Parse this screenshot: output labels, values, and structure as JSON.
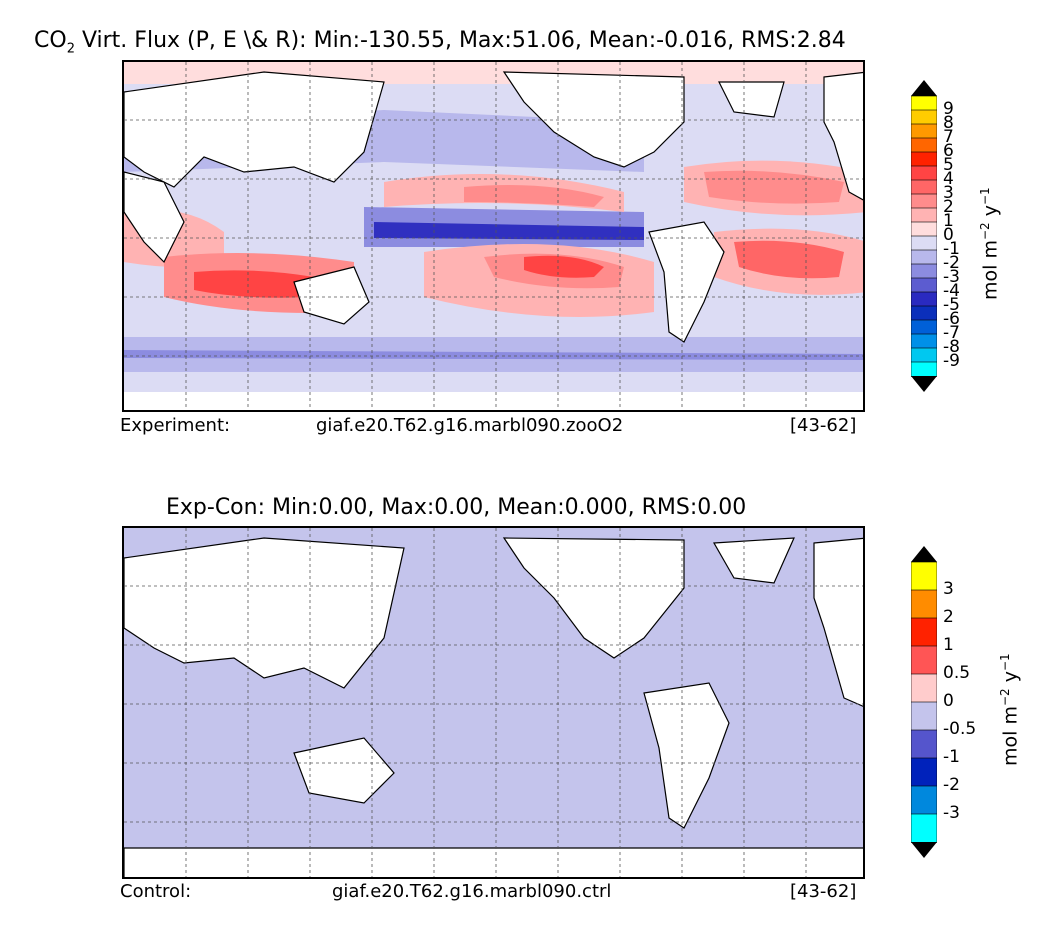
{
  "panel1": {
    "title_main": "CO",
    "title_sub": "2",
    "title_rest": " Virt. Flux (P, E \\& R): Min:-130.55, Max:51.06, Mean:-0.016, RMS:2.84",
    "caption_left": "Experiment:",
    "caption_center": "giaf.e20.T62.g16.marbl090.zooO2",
    "caption_right": "[43-62]",
    "colorbar_ticks": [
      "9",
      "8",
      "7",
      "6",
      "5",
      "4",
      "3",
      "2",
      "1",
      "0",
      "-1",
      "-2",
      "-3",
      "-4",
      "-5",
      "-6",
      "-7",
      "-8",
      "-9"
    ],
    "colorbar_colors": [
      "#ffff00",
      "#ffcc00",
      "#ff9900",
      "#ff6600",
      "#ff2200",
      "#ff4444",
      "#ff6666",
      "#ff8c8c",
      "#ffb3b3",
      "#ffdddd",
      "#dcdcf4",
      "#b8b8ec",
      "#8c8ce0",
      "#5c5cd0",
      "#2a2ac0",
      "#0b2fbb",
      "#0060d8",
      "#0090e8",
      "#00c8f0",
      "#00ffff"
    ],
    "unit_main": "mol m",
    "unit_sup1": "−2",
    "unit_mid": " y",
    "unit_sup2": "−1"
  },
  "panel2": {
    "title": "Exp-Con: Min:0.00, Max:0.00, Mean:0.000, RMS:0.00",
    "caption_left": "Control:",
    "caption_center": "giaf.e20.T62.g16.marbl090.ctrl",
    "caption_right": "[43-62]",
    "colorbar_ticks": [
      "3",
      "2",
      "1",
      "0.5",
      "0",
      "-0.5",
      "-1",
      "-2",
      "-3"
    ],
    "colorbar_colors": [
      "#ffff00",
      "#ff8c00",
      "#ff2200",
      "#ff5555",
      "#ffcccc",
      "#c4c4ec",
      "#5555cc",
      "#0022bb",
      "#0088dd",
      "#00ffff"
    ],
    "unit_main": "mol m",
    "unit_sup1": "−2",
    "unit_mid": " y",
    "unit_sup2": "−1"
  },
  "colors": {
    "land": "#ffffff",
    "ocean_diff": "#c4c4ec",
    "warm": "#ff5a5a",
    "cool": "#4a4ad0"
  }
}
